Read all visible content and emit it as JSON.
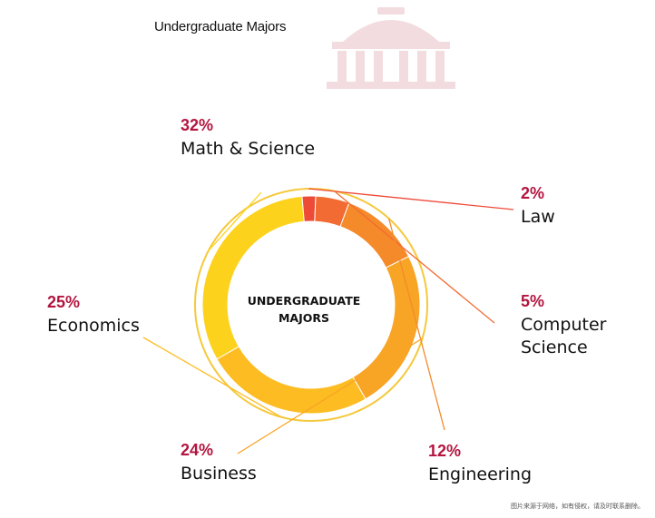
{
  "header": {
    "title": "Undergraduate Majors"
  },
  "footer": {
    "note": "图片来源于网络，如有侵权，请及时联系删除。"
  },
  "colors": {
    "percent": "#b3153f",
    "label": "#111111",
    "watermark": "#f2dcdf",
    "outer_ring": "#f5c93c"
  },
  "chart_data": {
    "type": "pie",
    "variant": "donut",
    "center_label": [
      "UNDERGRADUATE",
      "MAJORS"
    ],
    "slices": [
      {
        "label": [
          "Math & Science"
        ],
        "percent_text": "32%",
        "value": 32,
        "color": "#fdd21c"
      },
      {
        "label": [
          "Law"
        ],
        "percent_text": "2%",
        "value": 2,
        "color": "#ee4a38"
      },
      {
        "label": [
          "Computer",
          "Science"
        ],
        "percent_text": "5%",
        "value": 5,
        "color": "#f26b32"
      },
      {
        "label": [
          "Engineering"
        ],
        "percent_text": "12%",
        "value": 12,
        "color": "#f58a2a"
      },
      {
        "label": [
          "Business"
        ],
        "percent_text": "24%",
        "value": 24,
        "color": "#f8a425"
      },
      {
        "label": [
          "Economics"
        ],
        "percent_text": "25%",
        "value": 25,
        "color": "#fdbc22"
      }
    ]
  }
}
